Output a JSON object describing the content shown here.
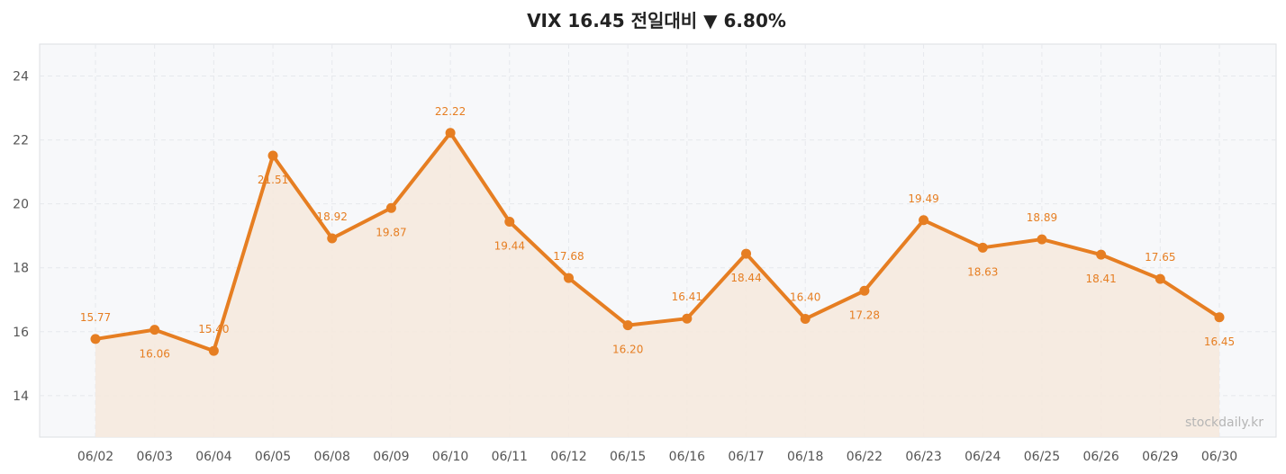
{
  "chart_data": {
    "type": "line",
    "title": "VIX  16.45  전일대비 ▼ 6.80%",
    "x": [
      "06/02",
      "06/03",
      "06/04",
      "06/05",
      "06/08",
      "06/09",
      "06/10",
      "06/11",
      "06/12",
      "06/15",
      "06/16",
      "06/17",
      "06/18",
      "06/22",
      "06/23",
      "06/24",
      "06/25",
      "06/26",
      "06/29",
      "06/30"
    ],
    "series": [
      {
        "values": [
          15.77,
          16.06,
          15.4,
          21.51,
          18.92,
          19.87,
          22.22,
          19.44,
          17.68,
          16.2,
          16.41,
          18.44,
          16.4,
          17.28,
          19.49,
          18.63,
          18.89,
          18.41,
          17.65,
          16.45
        ],
        "labels": [
          "15.77",
          "16.06",
          "15.40",
          "21.51",
          "18.92",
          "19.87",
          "22.22",
          "19.44",
          "17.68",
          "16.20",
          "16.41",
          "18.44",
          "16.40",
          "17.28",
          "19.49",
          "18.63",
          "18.89",
          "18.41",
          "17.65",
          "16.45"
        ],
        "label_pos": [
          "above",
          "below",
          "above",
          "below",
          "above",
          "below",
          "above",
          "below",
          "above",
          "below",
          "above",
          "below",
          "above",
          "below",
          "above",
          "below",
          "above",
          "below",
          "above",
          "below"
        ]
      }
    ],
    "y_ticks": [
      "14",
      "16",
      "18",
      "20",
      "22",
      "24"
    ],
    "ylim": [
      12.7,
      25.0
    ],
    "grid": true,
    "area_fill": true,
    "colors": {
      "line": "#E67E22",
      "fill": "#F5E9DE",
      "plot_bg": "#F7F8FA",
      "grid": "#E6E8EC"
    }
  },
  "watermark": "stockdaily.kr"
}
